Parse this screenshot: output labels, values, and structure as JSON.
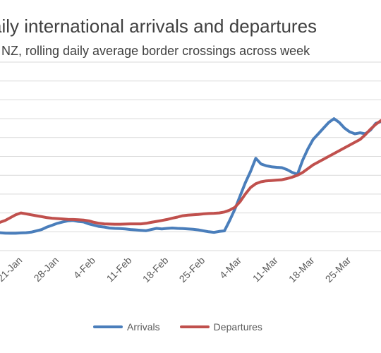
{
  "title": "aily international arrivals and departures",
  "subtitle": "s NZ, rolling daily average border crossings across week",
  "colors": {
    "arrivals": "#4a7ebb",
    "departures": "#c0504d",
    "grid": "#d9d9d9",
    "axis_text": "#595959"
  },
  "chart_data": {
    "type": "line",
    "title": "aily international arrivals and departures",
    "subtitle": "s NZ, rolling daily average border crossings across week",
    "xlabel": "",
    "ylabel": "",
    "x_ticks": [
      "21-Jan",
      "28-Jan",
      "4-Feb",
      "11-Feb",
      "18-Feb",
      "25-Feb",
      "4-Mar",
      "11-Mar",
      "18-Mar",
      "25-Mar"
    ],
    "x_range": [
      0,
      73
    ],
    "x_tick_positions": [
      4,
      11,
      18,
      25,
      32,
      39,
      46,
      53,
      60,
      67
    ],
    "y_range": [
      0,
      10
    ],
    "grid": true,
    "legend_position": "bottom",
    "series": [
      {
        "name": "Arrivals",
        "color": "#4a7ebb",
        "values": [
          0.95,
          0.93,
          0.92,
          0.92,
          0.94,
          0.95,
          0.98,
          1.05,
          1.12,
          1.25,
          1.35,
          1.45,
          1.52,
          1.58,
          1.6,
          1.55,
          1.52,
          1.42,
          1.35,
          1.28,
          1.25,
          1.2,
          1.18,
          1.17,
          1.15,
          1.12,
          1.1,
          1.08,
          1.06,
          1.12,
          1.18,
          1.15,
          1.18,
          1.2,
          1.18,
          1.17,
          1.15,
          1.13,
          1.1,
          1.05,
          1.0,
          0.97,
          1.02,
          1.05,
          1.6,
          2.2,
          2.9,
          3.6,
          4.2,
          4.9,
          4.6,
          4.5,
          4.45,
          4.42,
          4.4,
          4.3,
          4.15,
          4.05,
          4.8,
          5.4,
          5.9,
          6.2,
          6.5,
          6.8,
          7.0,
          6.8,
          6.5,
          6.3,
          6.2,
          6.25,
          6.2,
          6.4,
          6.75,
          6.85
        ]
      },
      {
        "name": "Departures",
        "color": "#c0504d",
        "values": [
          1.5,
          1.6,
          1.75,
          1.9,
          2.0,
          1.95,
          1.9,
          1.85,
          1.8,
          1.75,
          1.72,
          1.7,
          1.68,
          1.66,
          1.65,
          1.64,
          1.62,
          1.58,
          1.5,
          1.45,
          1.42,
          1.41,
          1.4,
          1.4,
          1.41,
          1.42,
          1.42,
          1.42,
          1.45,
          1.5,
          1.55,
          1.6,
          1.65,
          1.72,
          1.78,
          1.85,
          1.88,
          1.9,
          1.92,
          1.95,
          1.97,
          1.98,
          2.0,
          2.05,
          2.15,
          2.3,
          2.6,
          3.0,
          3.35,
          3.55,
          3.65,
          3.7,
          3.72,
          3.74,
          3.76,
          3.82,
          3.9,
          4.0,
          4.15,
          4.35,
          4.55,
          4.7,
          4.85,
          5.0,
          5.15,
          5.3,
          5.45,
          5.6,
          5.75,
          5.9,
          6.15,
          6.45,
          6.7,
          6.9
        ]
      }
    ]
  }
}
